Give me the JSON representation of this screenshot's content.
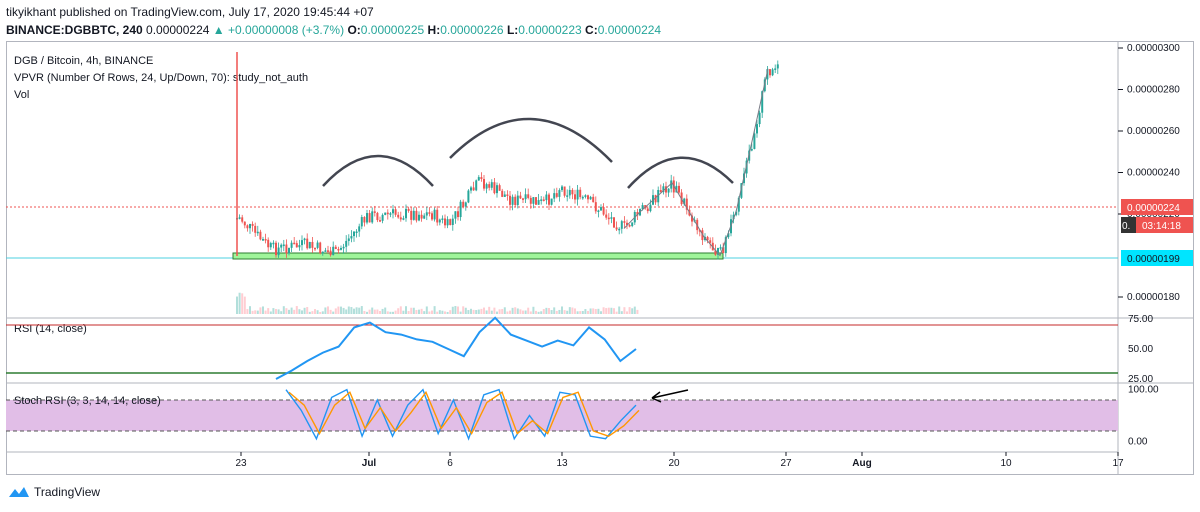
{
  "header": {
    "published_line": "tikyikhant published on TradingView.com, July 17, 2020 19:45:44 +07",
    "symbol": "BINANCE:DGBBTC, 240",
    "last": "0.00000224",
    "change": "+0.00000008 (+3.7%)",
    "o_label": "O:",
    "o": "0.00000225",
    "h_label": "H:",
    "h": "0.00000226",
    "l_label": "L:",
    "l": "0.00000223",
    "c_label": "C:",
    "c": "0.00000224"
  },
  "legend": {
    "main": "DGB / Bitcoin, 4h, BINANCE",
    "vpvr": "VPVR (Number Of Rows, 24, Up/Down, 70): study_not_auth",
    "vol": "Vol",
    "rsi": "RSI (14, close)",
    "stoch": "Stoch RSI (3, 3, 14, 14, close)"
  },
  "badges": {
    "last_price": "0.00000224",
    "countdown": "03:14:18",
    "countdown_prefix": "0.",
    "support": "0.00000199"
  },
  "brand": "TradingView",
  "colors": {
    "up": "#26a69a",
    "down": "#ef5350",
    "rsi": "#2196f3",
    "support_zone": "#9ff59a",
    "stoch_bg": "#e1bee7",
    "hline": "#4dd0e1"
  },
  "chart_data": {
    "type": "candlestick",
    "price_axis": {
      "ticks": [
        "0.00000300",
        "0.00000280",
        "0.00000260",
        "0.00000240",
        "0.00000220",
        "0.00000180"
      ],
      "range": [
        1.74e-06,
        3.02e-06
      ]
    },
    "x_ticks": [
      "23",
      "Jul",
      "6",
      "13",
      "20",
      "27",
      "Aug",
      "10",
      "17"
    ],
    "price_path": [
      {
        "x": "Jun 23",
        "y": 2.18e-06
      },
      {
        "x": "Jun 24",
        "y": 2.1e-06
      },
      {
        "x": "Jun 25",
        "y": 2.03e-06
      },
      {
        "x": "Jun 27",
        "y": 2.05e-06
      },
      {
        "x": "Jun 29",
        "y": 2.01e-06
      },
      {
        "x": "Jul 1",
        "y": 2.19e-06
      },
      {
        "x": "Jul 3",
        "y": 2.2e-06
      },
      {
        "x": "Jul 5",
        "y": 2.2e-06
      },
      {
        "x": "Jul 6",
        "y": 2.14e-06
      },
      {
        "x": "Jul 8",
        "y": 2.36e-06
      },
      {
        "x": "Jul 10",
        "y": 2.27e-06
      },
      {
        "x": "Jul 12",
        "y": 2.25e-06
      },
      {
        "x": "Jul 13",
        "y": 2.33e-06
      },
      {
        "x": "Jul 15",
        "y": 2.25e-06
      },
      {
        "x": "Jul 17",
        "y": 2.13e-06
      },
      {
        "x": "Jul 18",
        "y": 2.21e-06
      },
      {
        "x": "Jul 20",
        "y": 2.35e-06
      },
      {
        "x": "Jul 22",
        "y": 2.09e-06
      },
      {
        "x": "Jul 23",
        "y": 2e-06
      },
      {
        "x": "Jul 24",
        "y": 2.21e-06
      },
      {
        "x": "Jul 25",
        "y": 2.55e-06
      },
      {
        "x": "Jul 26",
        "y": 2.9e-06
      }
    ],
    "support_level": 1.99e-06,
    "last_price_level": 2.24e-06,
    "rsi": {
      "ticks": [
        "75.00",
        "50.00",
        "25.00"
      ],
      "levels": [
        70,
        30
      ],
      "values": [
        25,
        32,
        40,
        47,
        52,
        68,
        72,
        64,
        62,
        58,
        56,
        50,
        44,
        64,
        76,
        62,
        57,
        52,
        57,
        53,
        68,
        58,
        40,
        50
      ]
    },
    "stoch_rsi": {
      "ticks": [
        "100.00",
        "0.00"
      ],
      "band": [
        80,
        20
      ],
      "k": [
        100,
        60,
        5,
        85,
        100,
        10,
        80,
        10,
        70,
        100,
        15,
        80,
        5,
        90,
        100,
        5,
        50,
        10,
        95,
        90,
        10,
        5,
        40,
        70
      ],
      "d": [
        95,
        70,
        15,
        70,
        95,
        25,
        65,
        20,
        55,
        95,
        25,
        65,
        15,
        75,
        95,
        15,
        40,
        15,
        85,
        95,
        20,
        10,
        30,
        60
      ]
    }
  }
}
